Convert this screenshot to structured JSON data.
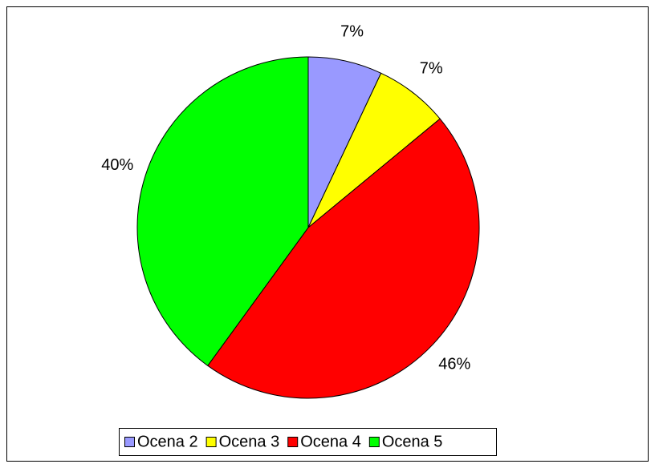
{
  "chart_data": {
    "type": "pie",
    "categories": [
      "Ocena 2",
      "Ocena 3",
      "Ocena 4",
      "Ocena 5"
    ],
    "values": [
      7,
      7,
      46,
      40
    ],
    "value_labels": [
      "7%",
      "7%",
      "46%",
      "40%"
    ],
    "colors": [
      "#9999ff",
      "#ffff00",
      "#ff0000",
      "#00ff00"
    ],
    "legend": "bottom"
  }
}
